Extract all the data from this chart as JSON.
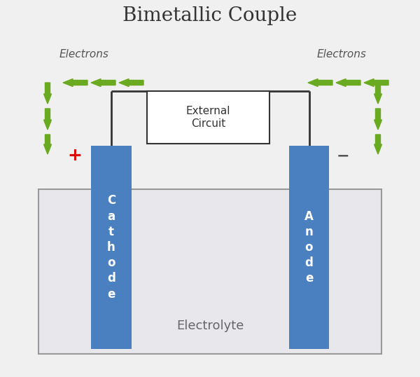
{
  "title": "Bimetallic Couple",
  "title_fontsize": 20,
  "title_color": "#333333",
  "bg_color": "#f0f0f0",
  "electrode_color": "#4a80c0",
  "electrolyte_color": "#e8e8ec",
  "electrolyte_border": "#999999",
  "circuit_box_color": "#ffffff",
  "circuit_box_border": "#333333",
  "wire_color": "#333333",
  "plus_color": "#dd0000",
  "minus_color": "#555555",
  "cathode_label": "C\na\nt\nh\no\nd\ne",
  "anode_label": "A\nn\no\nd\ne",
  "electrolyte_label": "Electrolyte",
  "external_circuit_label": "External\nCircuit",
  "electrons_label": "Electrons",
  "arrow_green": "#6aaa20"
}
